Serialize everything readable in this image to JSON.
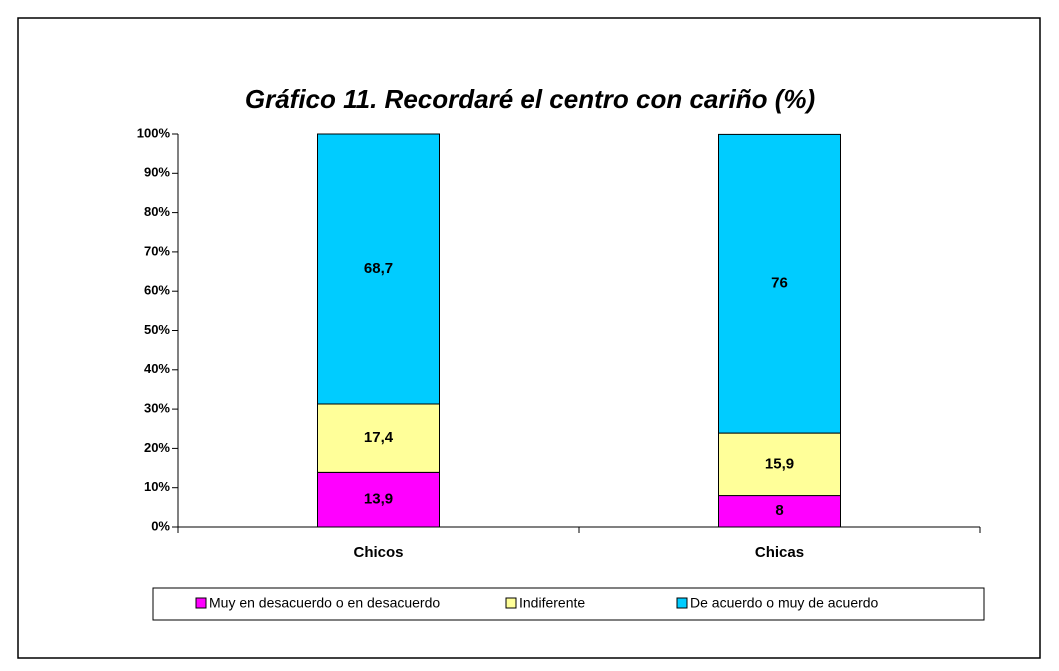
{
  "chart_data": {
    "type": "stacked_bar",
    "title": "Gráfico 11. Recordaré el centro con cariño (%)",
    "categories": [
      "Chicos",
      "Chicas"
    ],
    "series": [
      {
        "name": "Muy en desacuerdo o en desacuerdo",
        "color": "#ff00ff",
        "values": [
          13.9,
          8
        ],
        "value_labels": [
          "13,9",
          "8"
        ]
      },
      {
        "name": "Indiferente",
        "color": "#ffff99",
        "values": [
          17.4,
          15.9
        ],
        "value_labels": [
          "17,4",
          "15,9"
        ]
      },
      {
        "name": "De acuerdo o muy de acuerdo",
        "color": "#00ccff",
        "values": [
          68.7,
          76
        ],
        "value_labels": [
          "68,7",
          "76"
        ]
      }
    ],
    "ylim": [
      0,
      100
    ],
    "yticks": [
      {
        "value": 0,
        "label": "0%"
      },
      {
        "value": 10,
        "label": "10%"
      },
      {
        "value": 20,
        "label": "20%"
      },
      {
        "value": 30,
        "label": "30%"
      },
      {
        "value": 40,
        "label": "40%"
      },
      {
        "value": 50,
        "label": "50%"
      },
      {
        "value": 60,
        "label": "60%"
      },
      {
        "value": 70,
        "label": "70%"
      },
      {
        "value": 80,
        "label": "80%"
      },
      {
        "value": 90,
        "label": "90%"
      },
      {
        "value": 100,
        "label": "100%"
      }
    ],
    "grid": false,
    "legend": "bottom"
  }
}
